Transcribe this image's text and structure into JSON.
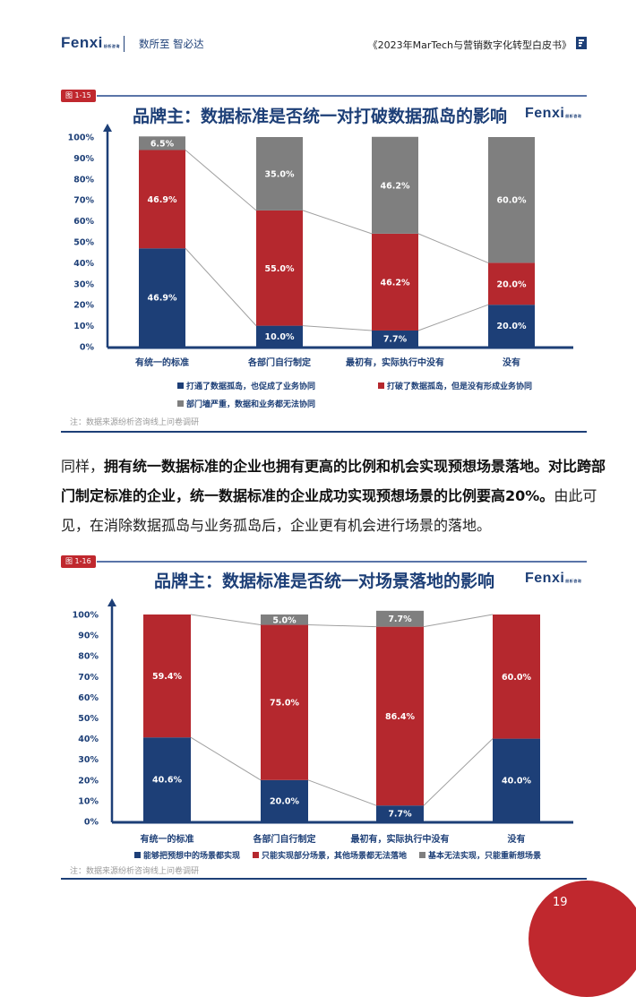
{
  "header": {
    "logo": "Fenxi",
    "slogan": "数所至 智必达",
    "doc_title": "《2023年MarTech与营销数字化转型白皮书》"
  },
  "colors": {
    "blue": "#1d3f77",
    "red": "#b5282e",
    "gray": "#7f7f7f"
  },
  "paragraph": {
    "lead": "同样，",
    "bold": "拥有统一数据标准的企业也拥有更高的比例和机会实现预想场景落地。对比跨部门制定标准的企业，统一数据标准的企业成功实现预想场景的比例要高20%。",
    "rest": "由此可见，在消除数据孤岛与业务孤岛后，企业更有机会进行场景的落地。"
  },
  "page_number": "19",
  "chart_data": [
    {
      "type": "bar",
      "stacked": true,
      "figure_label": "图 1-15",
      "title": "品牌主：数据标准是否统一对打破数据孤岛的影响",
      "logo": "Fenxi",
      "categories": [
        "有统一的标准",
        "各部门自行制定",
        "最初有，实际执行中没有",
        "没有"
      ],
      "yticks": [
        "0%",
        "10%",
        "20%",
        "30%",
        "40%",
        "50%",
        "60%",
        "70%",
        "80%",
        "90%",
        "100%"
      ],
      "ylim": [
        0,
        100
      ],
      "series": [
        {
          "name": "打通了数据孤岛，也促成了业务协同",
          "color": "#1d3f77",
          "values": [
            46.9,
            10.0,
            7.7,
            20.0
          ],
          "labels": [
            "46.9%",
            "10.0%",
            "7.7%",
            "20.0%"
          ]
        },
        {
          "name": "打破了数据孤岛，但是没有形成业务协同",
          "color": "#b5282e",
          "values": [
            46.9,
            55.0,
            46.2,
            20.0
          ],
          "labels": [
            "46.9%",
            "55.0%",
            "46.2%",
            "20.0%"
          ]
        },
        {
          "name": "部门墙严重，数据和业务都无法协同",
          "color": "#7f7f7f",
          "values": [
            6.5,
            35.0,
            46.2,
            60.0
          ],
          "labels": [
            "6.5%",
            "35.0%",
            "46.2%",
            "60.0%"
          ]
        }
      ],
      "note": "注：数据来源纷析咨询线上问卷调研",
      "legend": "bottom"
    },
    {
      "type": "bar",
      "stacked": true,
      "figure_label": "图 1-16",
      "title": "品牌主：数据标准是否统一对场景落地的影响",
      "logo": "Fenxi",
      "categories": [
        "有统一的标准",
        "各部门自行制定",
        "最初有，实际执行中没有",
        "没有"
      ],
      "yticks": [
        "0%",
        "10%",
        "20%",
        "30%",
        "40%",
        "50%",
        "60%",
        "70%",
        "80%",
        "90%",
        "100%"
      ],
      "ylim": [
        0,
        100
      ],
      "series": [
        {
          "name": "能够把预想中的场景都实现",
          "color": "#1d3f77",
          "values": [
            40.6,
            20.0,
            7.7,
            40.0
          ],
          "labels": [
            "40.6%",
            "20.0%",
            "7.7%",
            "40.0%"
          ]
        },
        {
          "name": "只能实现部分场景，其他场景都无法落地",
          "color": "#b5282e",
          "values": [
            59.4,
            75.0,
            86.4,
            60.0
          ],
          "labels": [
            "59.4%",
            "75.0%",
            "86.4%",
            "60.0%"
          ]
        },
        {
          "name": "基本无法实现，只能重新想场景",
          "color": "#7f7f7f",
          "values": [
            0,
            5.0,
            7.7,
            0
          ],
          "labels": [
            "",
            "5.0%",
            "7.7%",
            ""
          ]
        }
      ],
      "note": "注：数据来源纷析咨询线上问卷调研",
      "legend": "bottom"
    }
  ]
}
